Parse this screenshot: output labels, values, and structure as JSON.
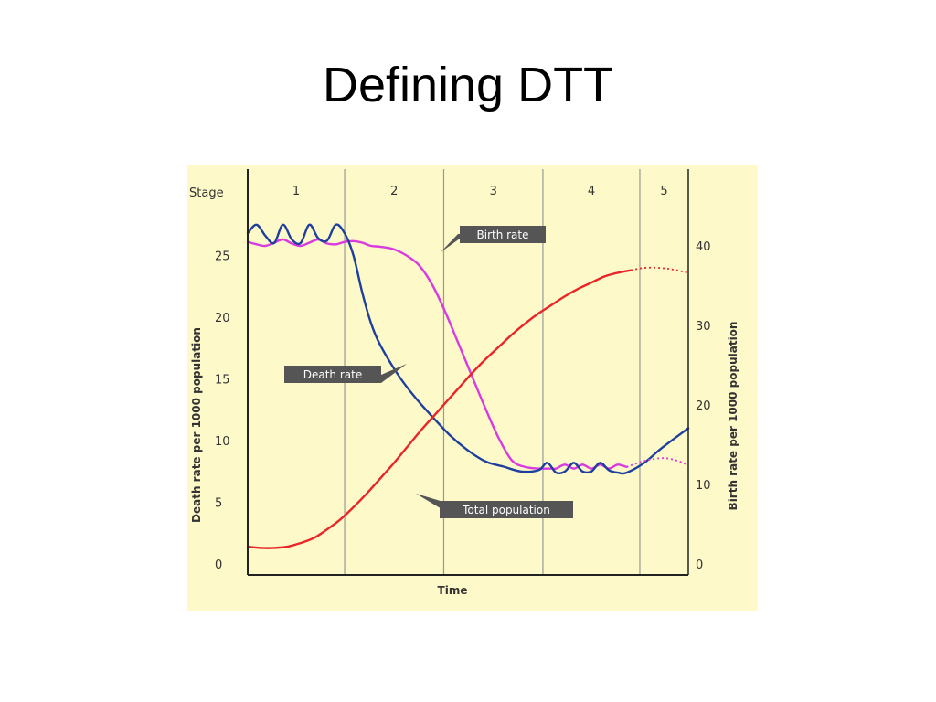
{
  "slide": {
    "title": "Defining DTT"
  },
  "chart_data": {
    "type": "line",
    "stage_label": "Stage",
    "stages": [
      "1",
      "2",
      "3",
      "4",
      "5"
    ],
    "xlabel": "Time",
    "ylabel_left": "Death rate per 1000 population",
    "ylabel_right": "Birth rate per 1000 population",
    "left_ticks": [
      "0",
      "5",
      "10",
      "15",
      "20",
      "25"
    ],
    "right_ticks": [
      "0",
      "10",
      "20",
      "30",
      "40"
    ],
    "ylim_left": [
      0,
      28
    ],
    "ylim_right": [
      0,
      42
    ],
    "xlim": [
      0,
      100
    ],
    "stage_boundaries": [
      22,
      44.5,
      67,
      89
    ],
    "grid": false,
    "colors": {
      "background": "#fdf9c9",
      "birth_rate": "#d93ae0",
      "death_rate": "#1f3f9e",
      "total_population": "#e8262a",
      "label_box": "#555555"
    },
    "series": [
      {
        "name": "Birth rate",
        "axis": "right",
        "x": [
          0,
          2,
          4,
          6,
          8,
          10,
          12,
          14,
          16,
          18,
          20,
          22,
          24,
          26,
          28,
          30,
          33,
          36,
          39,
          42,
          45,
          48,
          51,
          54,
          57,
          60,
          63,
          66,
          69,
          70,
          72,
          74,
          76,
          78,
          80,
          82,
          84,
          86
        ],
        "y": [
          40.5,
          40.2,
          40.0,
          40.4,
          40.8,
          40.3,
          40.0,
          40.4,
          40.8,
          40.3,
          40.2,
          40.5,
          40.6,
          40.4,
          40.0,
          39.9,
          39.6,
          38.8,
          37.5,
          35.0,
          31.5,
          27.5,
          23.5,
          19.5,
          15.8,
          13.0,
          12.2,
          12.0,
          12.0,
          12.0,
          12.5,
          12.0,
          12.5,
          12.0,
          12.5,
          12.0,
          12.5,
          12.2
        ]
      },
      {
        "name": "Death rate",
        "axis": "left",
        "x": [
          0,
          2,
          4,
          6,
          8,
          10,
          12,
          14,
          16,
          18,
          20,
          22,
          24,
          26,
          28,
          30,
          34,
          38,
          42,
          46,
          50,
          54,
          58,
          62,
          66,
          68,
          70,
          72,
          74,
          76,
          78,
          80,
          82,
          84,
          86,
          90,
          94,
          100
        ],
        "y": [
          26.8,
          27.5,
          26.6,
          26.0,
          27.5,
          26.3,
          26.0,
          27.5,
          26.4,
          26.2,
          27.5,
          26.8,
          25.0,
          22.0,
          19.5,
          17.8,
          15.4,
          13.5,
          11.9,
          10.4,
          9.2,
          8.3,
          7.9,
          7.5,
          7.6,
          8.2,
          7.4,
          7.5,
          8.2,
          7.5,
          7.5,
          8.2,
          7.6,
          7.4,
          7.4,
          8.2,
          9.4,
          11.0
        ]
      },
      {
        "name": "Total population",
        "axis": "left",
        "x": [
          0,
          3,
          6,
          9,
          12,
          15,
          18,
          21,
          24,
          27,
          30,
          33,
          36,
          39,
          42,
          45,
          48,
          51,
          54,
          57,
          60,
          63,
          66,
          69,
          72,
          75,
          78,
          81,
          84,
          87
        ],
        "y": [
          1.4,
          1.3,
          1.3,
          1.4,
          1.7,
          2.1,
          2.8,
          3.6,
          4.6,
          5.7,
          6.9,
          8.1,
          9.4,
          10.7,
          11.9,
          13.1,
          14.3,
          15.5,
          16.6,
          17.6,
          18.6,
          19.5,
          20.3,
          21.0,
          21.7,
          22.3,
          22.8,
          23.3,
          23.6,
          23.8
        ]
      }
    ],
    "projections": [
      {
        "of": "Total population",
        "axis": "left",
        "x": [
          87,
          90,
          93,
          96,
          100
        ],
        "y": [
          23.8,
          24.0,
          24.0,
          23.9,
          23.6
        ]
      },
      {
        "of": "Birth rate",
        "axis": "right",
        "x": [
          86,
          89,
          92,
          95,
          98,
          100
        ],
        "y": [
          12.2,
          12.8,
          13.2,
          13.3,
          12.9,
          12.4
        ]
      }
    ],
    "annotations": [
      "Birth rate",
      "Death rate",
      "Total population"
    ]
  }
}
